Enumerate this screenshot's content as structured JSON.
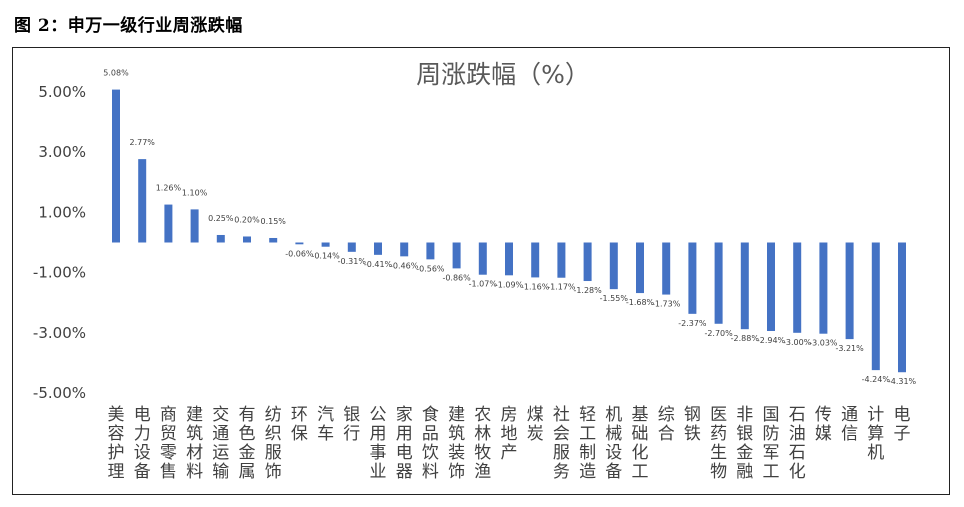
{
  "caption": "图 2：申万一级行业周涨跌幅",
  "chart_data": {
    "type": "bar",
    "title": "周涨跌幅（%）",
    "ylim": [
      -5.0,
      5.0
    ],
    "yticks": [
      5.0,
      3.0,
      1.0,
      -1.0,
      -3.0,
      -5.0
    ],
    "ytick_labels": [
      "5.00%",
      "3.00%",
      "1.00%",
      "-1.00%",
      "-3.00%",
      "-5.00%"
    ],
    "grid": false,
    "bar_color": "#4472C4",
    "categories": [
      "美容护理",
      "电力设备",
      "商贸零售",
      "建筑材料",
      "交通运输",
      "有色金属",
      "纺织服饰",
      "环保",
      "汽车",
      "银行",
      "公用事业",
      "家用电器",
      "食品饮料",
      "建筑装饰",
      "农林牧渔",
      "房地产",
      "煤炭",
      "社会服务",
      "轻工制造",
      "机械设备",
      "基础化工",
      "综合",
      "钢铁",
      "医药生物",
      "非银金融",
      "国防军工",
      "石油石化",
      "传媒",
      "通信",
      "计算机",
      "电子"
    ],
    "values": [
      5.08,
      2.77,
      1.26,
      1.1,
      0.25,
      0.2,
      0.15,
      -0.06,
      -0.14,
      -0.31,
      -0.41,
      -0.46,
      -0.56,
      -0.86,
      -1.07,
      -1.09,
      -1.16,
      -1.17,
      -1.28,
      -1.55,
      -1.68,
      -1.73,
      -2.37,
      -2.7,
      -2.88,
      -2.94,
      -3.0,
      -3.03,
      -3.21,
      -4.24,
      -4.31
    ],
    "data_labels": [
      "5.08%",
      "2.77%",
      "1.26%",
      "1.10%",
      "0.25%",
      "0.20%",
      "0.15%",
      "-0.06%",
      "-0.14%",
      "-0.31%",
      "-0.41%",
      "-0.46%",
      "-0.56%",
      "-0.86%",
      "-1.07%",
      "-1.09%",
      "-1.16%",
      "-1.17%",
      "-1.28%",
      "-1.55%",
      "-1.68%",
      "-1.73%",
      "-2.37%",
      "-2.70%",
      "-2.88%",
      "-2.94%",
      "-3.00%",
      "-3.03%",
      "-3.21%",
      "-4.24%",
      "-4.31%"
    ]
  }
}
